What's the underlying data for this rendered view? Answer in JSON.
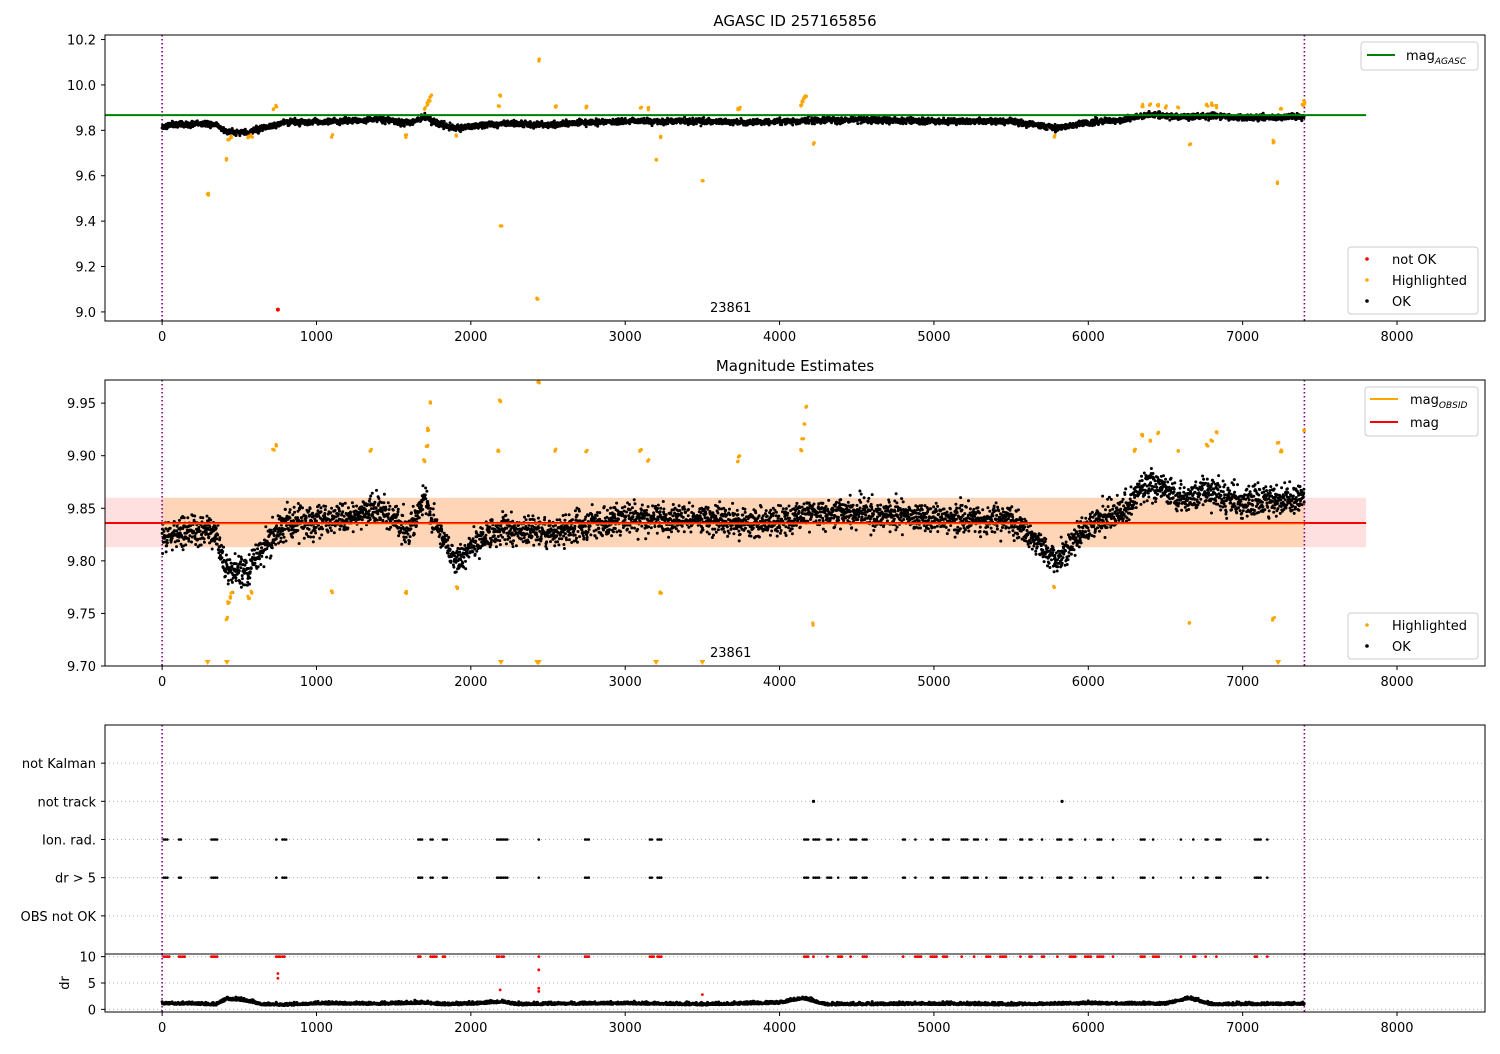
{
  "chart_data": [
    {
      "type": "scatter",
      "title": "AGASC ID 257165856",
      "xlabel": "",
      "ylabel": "",
      "xlim": [
        -370,
        8570
      ],
      "ylim": [
        8.96,
        10.22
      ],
      "xticks": [
        "0",
        "1000",
        "2000",
        "3000",
        "4000",
        "5000",
        "6000",
        "7000",
        "8000"
      ],
      "yticks": [
        "9.0",
        "9.2",
        "9.4",
        "9.6",
        "9.8",
        "10.0",
        "10.2"
      ],
      "grid": false,
      "legend_upper": {
        "location": "upper-right",
        "entries": [
          {
            "label": "mag",
            "subscript": "AGASC",
            "color": "#008000"
          }
        ]
      },
      "legend_lower": {
        "location": "lower-right",
        "entries": [
          {
            "label": "not OK",
            "color": "#ff0000"
          },
          {
            "label": "Highlighted",
            "color": "#ffa500"
          },
          {
            "label": "OK",
            "color": "#000000"
          }
        ]
      },
      "reference_line": {
        "y": 9.867,
        "x": [
          -370,
          7800
        ],
        "color": "#008000"
      },
      "vlines": [
        0,
        7400
      ],
      "annotation": {
        "text": "23861",
        "x": 3700,
        "y": 9.0
      },
      "ok_trend": [
        [
          0,
          9.82
        ],
        [
          200,
          9.83
        ],
        [
          350,
          9.825
        ],
        [
          420,
          9.795
        ],
        [
          560,
          9.79
        ],
        [
          650,
          9.81
        ],
        [
          800,
          9.835
        ],
        [
          1200,
          9.84
        ],
        [
          1400,
          9.85
        ],
        [
          1600,
          9.83
        ],
        [
          1700,
          9.86
        ],
        [
          1750,
          9.84
        ],
        [
          1900,
          9.81
        ],
        [
          2050,
          9.82
        ],
        [
          2200,
          9.83
        ],
        [
          2500,
          9.825
        ],
        [
          2800,
          9.835
        ],
        [
          3000,
          9.84
        ],
        [
          3200,
          9.84
        ],
        [
          3500,
          9.84
        ],
        [
          3800,
          9.835
        ],
        [
          4100,
          9.84
        ],
        [
          4200,
          9.845
        ],
        [
          4600,
          9.845
        ],
        [
          5000,
          9.84
        ],
        [
          5200,
          9.84
        ],
        [
          5500,
          9.84
        ],
        [
          5700,
          9.82
        ],
        [
          5800,
          9.81
        ],
        [
          6000,
          9.835
        ],
        [
          6200,
          9.845
        ],
        [
          6400,
          9.87
        ],
        [
          6600,
          9.86
        ],
        [
          6800,
          9.865
        ],
        [
          7000,
          9.855
        ],
        [
          7400,
          9.86
        ]
      ],
      "highlighted": [
        [
          295,
          9.52
        ],
        [
          420,
          9.67
        ],
        [
          430,
          9.76
        ],
        [
          450,
          9.77
        ],
        [
          560,
          9.77
        ],
        [
          580,
          9.775
        ],
        [
          720,
          9.895
        ],
        [
          740,
          9.905
        ],
        [
          1100,
          9.775
        ],
        [
          1580,
          9.775
        ],
        [
          1700,
          9.895
        ],
        [
          1720,
          9.915
        ],
        [
          1730,
          9.93
        ],
        [
          1740,
          9.95
        ],
        [
          1910,
          9.78
        ],
        [
          2180,
          9.91
        ],
        [
          2190,
          9.95
        ],
        [
          2195,
          9.38
        ],
        [
          2430,
          9.06
        ],
        [
          2440,
          10.11
        ],
        [
          2550,
          9.905
        ],
        [
          2750,
          9.905
        ],
        [
          3100,
          9.9
        ],
        [
          3150,
          9.895
        ],
        [
          3200,
          9.67
        ],
        [
          3230,
          9.77
        ],
        [
          3500,
          9.58
        ],
        [
          3730,
          9.89
        ],
        [
          3740,
          9.895
        ],
        [
          4140,
          9.91
        ],
        [
          4150,
          9.925
        ],
        [
          4160,
          9.94
        ],
        [
          4170,
          9.95
        ],
        [
          4220,
          9.74
        ],
        [
          5780,
          9.775
        ],
        [
          6350,
          9.91
        ],
        [
          6400,
          9.915
        ],
        [
          6450,
          9.91
        ],
        [
          6500,
          9.905
        ],
        [
          6580,
          9.905
        ],
        [
          6660,
          9.74
        ],
        [
          6770,
          9.91
        ],
        [
          6800,
          9.915
        ],
        [
          6830,
          9.905
        ],
        [
          7200,
          9.75
        ],
        [
          7230,
          9.57
        ],
        [
          7250,
          9.9
        ],
        [
          7390,
          9.91
        ],
        [
          7400,
          9.925
        ]
      ],
      "not_ok": [
        [
          750,
          9.01
        ]
      ]
    },
    {
      "type": "scatter",
      "title": "Magnitude Estimates",
      "xlabel": "",
      "ylabel": "",
      "xlim": [
        -370,
        8570
      ],
      "ylim": [
        9.7,
        9.972
      ],
      "xticks": [
        "0",
        "1000",
        "2000",
        "3000",
        "4000",
        "5000",
        "6000",
        "7000",
        "8000"
      ],
      "yticks": [
        "9.70",
        "9.75",
        "9.80",
        "9.85",
        "9.90",
        "9.95"
      ],
      "grid": false,
      "legend_upper": {
        "location": "upper-right",
        "entries": [
          {
            "label": "mag",
            "subscript": "OBSID",
            "color": "#ffa500"
          },
          {
            "label": "mag",
            "color": "#ff0000"
          }
        ]
      },
      "legend_lower": {
        "location": "lower-right",
        "entries": [
          {
            "label": "Highlighted",
            "color": "#ffa500"
          },
          {
            "label": "OK",
            "color": "#000000"
          }
        ]
      },
      "mag_line": {
        "y": 9.836,
        "x": [
          -370,
          7800
        ],
        "color": "#ff0000"
      },
      "mag_band": {
        "y": [
          9.813,
          9.86
        ],
        "x": [
          -370,
          7800
        ]
      },
      "obsid_band": {
        "y": [
          9.813,
          9.86
        ],
        "x": [
          0,
          7400
        ]
      },
      "vlines": [
        0,
        7400
      ],
      "annotation": {
        "text": "23861",
        "x": 3700,
        "y": 9.705
      },
      "ok_trend": [
        [
          0,
          9.82
        ],
        [
          200,
          9.83
        ],
        [
          350,
          9.825
        ],
        [
          420,
          9.79
        ],
        [
          560,
          9.79
        ],
        [
          650,
          9.81
        ],
        [
          800,
          9.835
        ],
        [
          1200,
          9.84
        ],
        [
          1400,
          9.85
        ],
        [
          1600,
          9.83
        ],
        [
          1700,
          9.86
        ],
        [
          1750,
          9.84
        ],
        [
          1900,
          9.8
        ],
        [
          2050,
          9.82
        ],
        [
          2200,
          9.83
        ],
        [
          2500,
          9.825
        ],
        [
          2800,
          9.835
        ],
        [
          3000,
          9.84
        ],
        [
          3200,
          9.84
        ],
        [
          3500,
          9.84
        ],
        [
          3800,
          9.835
        ],
        [
          4100,
          9.84
        ],
        [
          4200,
          9.845
        ],
        [
          4600,
          9.845
        ],
        [
          5000,
          9.84
        ],
        [
          5200,
          9.84
        ],
        [
          5500,
          9.84
        ],
        [
          5700,
          9.815
        ],
        [
          5800,
          9.8
        ],
        [
          6000,
          9.835
        ],
        [
          6200,
          9.845
        ],
        [
          6400,
          9.875
        ],
        [
          6600,
          9.86
        ],
        [
          6800,
          9.865
        ],
        [
          7000,
          9.855
        ],
        [
          7400,
          9.86
        ]
      ],
      "highlighted": [
        [
          420,
          9.745
        ],
        [
          430,
          9.76
        ],
        [
          440,
          9.765
        ],
        [
          450,
          9.77
        ],
        [
          560,
          9.765
        ],
        [
          580,
          9.77
        ],
        [
          720,
          9.905
        ],
        [
          740,
          9.91
        ],
        [
          1100,
          9.77
        ],
        [
          1350,
          9.905
        ],
        [
          1580,
          9.77
        ],
        [
          1700,
          9.895
        ],
        [
          1715,
          9.91
        ],
        [
          1725,
          9.925
        ],
        [
          1735,
          9.95
        ],
        [
          1910,
          9.775
        ],
        [
          2180,
          9.905
        ],
        [
          2190,
          9.952
        ],
        [
          2440,
          9.97
        ],
        [
          2550,
          9.905
        ],
        [
          2750,
          9.905
        ],
        [
          3100,
          9.905
        ],
        [
          3150,
          9.895
        ],
        [
          3230,
          9.77
        ],
        [
          3730,
          9.895
        ],
        [
          3740,
          9.9
        ],
        [
          4140,
          9.905
        ],
        [
          4150,
          9.915
        ],
        [
          4160,
          9.93
        ],
        [
          4170,
          9.947
        ],
        [
          4220,
          9.74
        ],
        [
          5780,
          9.775
        ],
        [
          6300,
          9.905
        ],
        [
          6350,
          9.92
        ],
        [
          6400,
          9.915
        ],
        [
          6450,
          9.922
        ],
        [
          6580,
          9.905
        ],
        [
          6660,
          9.74
        ],
        [
          6770,
          9.91
        ],
        [
          6800,
          9.915
        ],
        [
          6830,
          9.922
        ],
        [
          7200,
          9.745
        ],
        [
          7230,
          9.912
        ],
        [
          7250,
          9.905
        ],
        [
          7400,
          9.925
        ]
      ],
      "highlighted_clipped": [
        295,
        420,
        2195,
        2430,
        2440,
        3200,
        3500,
        7230
      ]
    },
    {
      "type": "scatter",
      "title": "",
      "xlabel": "",
      "ylabel": "",
      "xlim": [
        -370,
        8570
      ],
      "categories": [
        "not Kalman",
        "not track",
        "Ion. rad.",
        "dr > 5",
        "OBS not OK"
      ],
      "grid": true,
      "vlines": [
        0,
        7400
      ],
      "flag_clusters": [
        10,
        110,
        320,
        740,
        780,
        1660,
        1740,
        1820,
        2170,
        2200,
        2440,
        2740,
        3160,
        3210,
        4160,
        4220,
        4310,
        4380,
        4460,
        4540,
        4800,
        4880,
        4980,
        5060,
        5180,
        5260,
        5340,
        5430,
        5560,
        5620,
        5700,
        5800,
        5880,
        5980,
        6060,
        6160,
        6340,
        6420,
        6600,
        6680,
        6760,
        6830,
        7080,
        7160
      ],
      "not_track": [
        4220,
        5830
      ]
    },
    {
      "type": "scatter",
      "title": "",
      "xlabel": "",
      "ylabel": "dr",
      "xlim": [
        -370,
        8570
      ],
      "ylim": [
        -0.5,
        10.5
      ],
      "xticks": [
        "0",
        "1000",
        "2000",
        "3000",
        "4000",
        "5000",
        "6000",
        "7000",
        "8000"
      ],
      "yticks": [
        "0",
        "5",
        "10"
      ],
      "grid": true,
      "vlines": [
        0,
        7400
      ],
      "dr_trend": [
        [
          0,
          1.2
        ],
        [
          200,
          1.1
        ],
        [
          350,
          1.0
        ],
        [
          420,
          2.0
        ],
        [
          500,
          1.9
        ],
        [
          560,
          1.6
        ],
        [
          650,
          1.0
        ],
        [
          800,
          0.9
        ],
        [
          1000,
          1.2
        ],
        [
          1400,
          1.1
        ],
        [
          1700,
          1.3
        ],
        [
          1800,
          1.0
        ],
        [
          2000,
          1.1
        ],
        [
          2200,
          1.5
        ],
        [
          2300,
          1.0
        ],
        [
          2500,
          1.1
        ],
        [
          3000,
          1.2
        ],
        [
          3500,
          1.0
        ],
        [
          4000,
          1.3
        ],
        [
          4150,
          2.2
        ],
        [
          4300,
          1.0
        ],
        [
          5000,
          1.1
        ],
        [
          5500,
          1.0
        ],
        [
          6000,
          1.2
        ],
        [
          6500,
          1.1
        ],
        [
          6650,
          2.2
        ],
        [
          6800,
          1.0
        ],
        [
          7400,
          1.1
        ]
      ],
      "high_dr": [
        [
          750,
          6.8
        ],
        [
          750,
          5.9
        ],
        [
          2190,
          3.7
        ],
        [
          2440,
          7.5
        ],
        [
          2440,
          4.0
        ],
        [
          2440,
          3.4
        ],
        [
          3500,
          2.8
        ]
      ]
    }
  ]
}
